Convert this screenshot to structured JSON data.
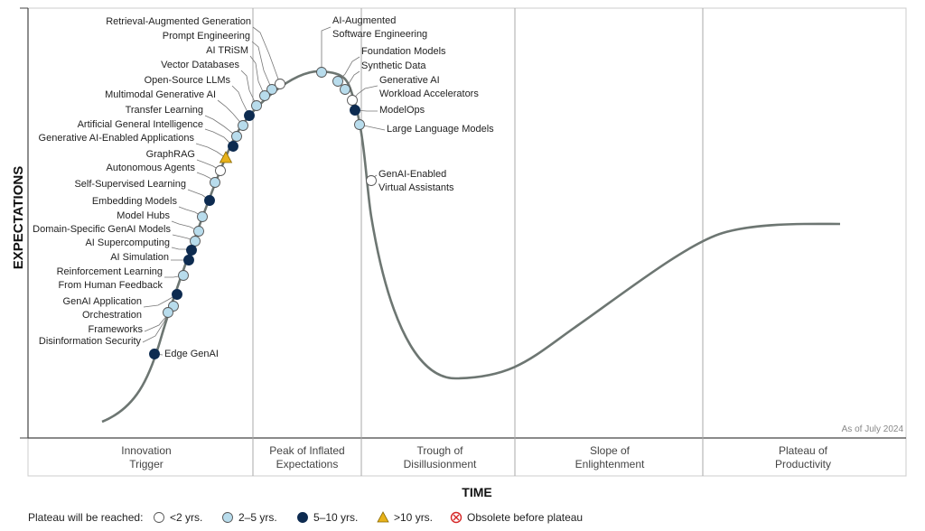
{
  "chart_data": {
    "type": "scatter",
    "xlabel": "TIME",
    "ylabel": "EXPECTATIONS",
    "as_of": "As of July 2024",
    "phases": [
      {
        "key": "trigger",
        "lines": [
          "Innovation",
          "Trigger"
        ]
      },
      {
        "key": "peak",
        "lines": [
          "Peak of Inflated",
          "Expectations"
        ]
      },
      {
        "key": "trough",
        "lines": [
          "Trough of",
          "Disillusionment"
        ]
      },
      {
        "key": "slope",
        "lines": [
          "Slope of",
          "Enlightenment"
        ]
      },
      {
        "key": "plateau",
        "lines": [
          "Plateau of",
          "Productivity"
        ]
      }
    ],
    "legend": {
      "title": "Plateau will be reached:",
      "items": [
        {
          "key": "lt2",
          "label": "<2 yrs.",
          "color": "#ffffff"
        },
        {
          "key": "2to5",
          "label": "2–5 yrs.",
          "color": "#b8dcec"
        },
        {
          "key": "5to10",
          "label": "5–10 yrs.",
          "color": "#0d2b50"
        },
        {
          "key": "gt10",
          "label": ">10 yrs.",
          "color": "#e8b21a"
        },
        {
          "key": "obsolete",
          "label": "Obsolete before plateau",
          "color": "#d62828"
        }
      ]
    },
    "technologies": [
      {
        "lines": [
          "Retrieval-Augmented Generation"
        ],
        "plateau": "lt2"
      },
      {
        "lines": [
          "Prompt Engineering"
        ],
        "plateau": "2to5"
      },
      {
        "lines": [
          "AI TRiSM"
        ],
        "plateau": "2to5"
      },
      {
        "lines": [
          "Vector Databases"
        ],
        "plateau": "2to5"
      },
      {
        "lines": [
          "Open-Source LLMs"
        ],
        "plateau": "5to10"
      },
      {
        "lines": [
          "Multimodal Generative AI"
        ],
        "plateau": "2to5"
      },
      {
        "lines": [
          "Transfer Learning"
        ],
        "plateau": "2to5"
      },
      {
        "lines": [
          "Artificial General Intelligence"
        ],
        "plateau": "5to10"
      },
      {
        "lines": [
          "Generative AI-Enabled Applications"
        ],
        "plateau": "gt10"
      },
      {
        "lines": [
          "GraphRAG"
        ],
        "plateau": "lt2"
      },
      {
        "lines": [
          "Autonomous Agents"
        ],
        "plateau": "2to5"
      },
      {
        "lines": [
          "Self-Supervised Learning"
        ],
        "plateau": "5to10"
      },
      {
        "lines": [
          "Embedding Models"
        ],
        "plateau": "2to5"
      },
      {
        "lines": [
          "Model Hubs"
        ],
        "plateau": "2to5"
      },
      {
        "lines": [
          "Domain-Specific GenAI Models"
        ],
        "plateau": "2to5"
      },
      {
        "lines": [
          "AI Supercomputing"
        ],
        "plateau": "5to10"
      },
      {
        "lines": [
          "AI Simulation"
        ],
        "plateau": "5to10"
      },
      {
        "lines": [
          "Reinforcement Learning",
          "From Human Feedback"
        ],
        "plateau": "2to5"
      },
      {
        "lines": [
          "GenAI Application",
          "Orchestration"
        ],
        "plateau": "5to10"
      },
      {
        "lines": [
          "Frameworks"
        ],
        "plateau": "2to5"
      },
      {
        "lines": [
          "Disinformation Security"
        ],
        "plateau": "2to5"
      },
      {
        "lines": [
          "Edge GenAI"
        ],
        "plateau": "5to10"
      },
      {
        "lines": [
          "AI-Augmented",
          "Software Engineering"
        ],
        "plateau": "2to5"
      },
      {
        "lines": [
          "Foundation Models"
        ],
        "plateau": "2to5"
      },
      {
        "lines": [
          "Synthetic Data"
        ],
        "plateau": "2to5"
      },
      {
        "lines": [
          "Generative AI",
          "Workload Accelerators"
        ],
        "plateau": "lt2"
      },
      {
        "lines": [
          "ModelOps"
        ],
        "plateau": "5to10"
      },
      {
        "lines": [
          "Large Language Models"
        ],
        "plateau": "2to5"
      },
      {
        "lines": [
          "GenAI-Enabled",
          "Virtual Assistants"
        ],
        "plateau": "lt2"
      }
    ]
  }
}
